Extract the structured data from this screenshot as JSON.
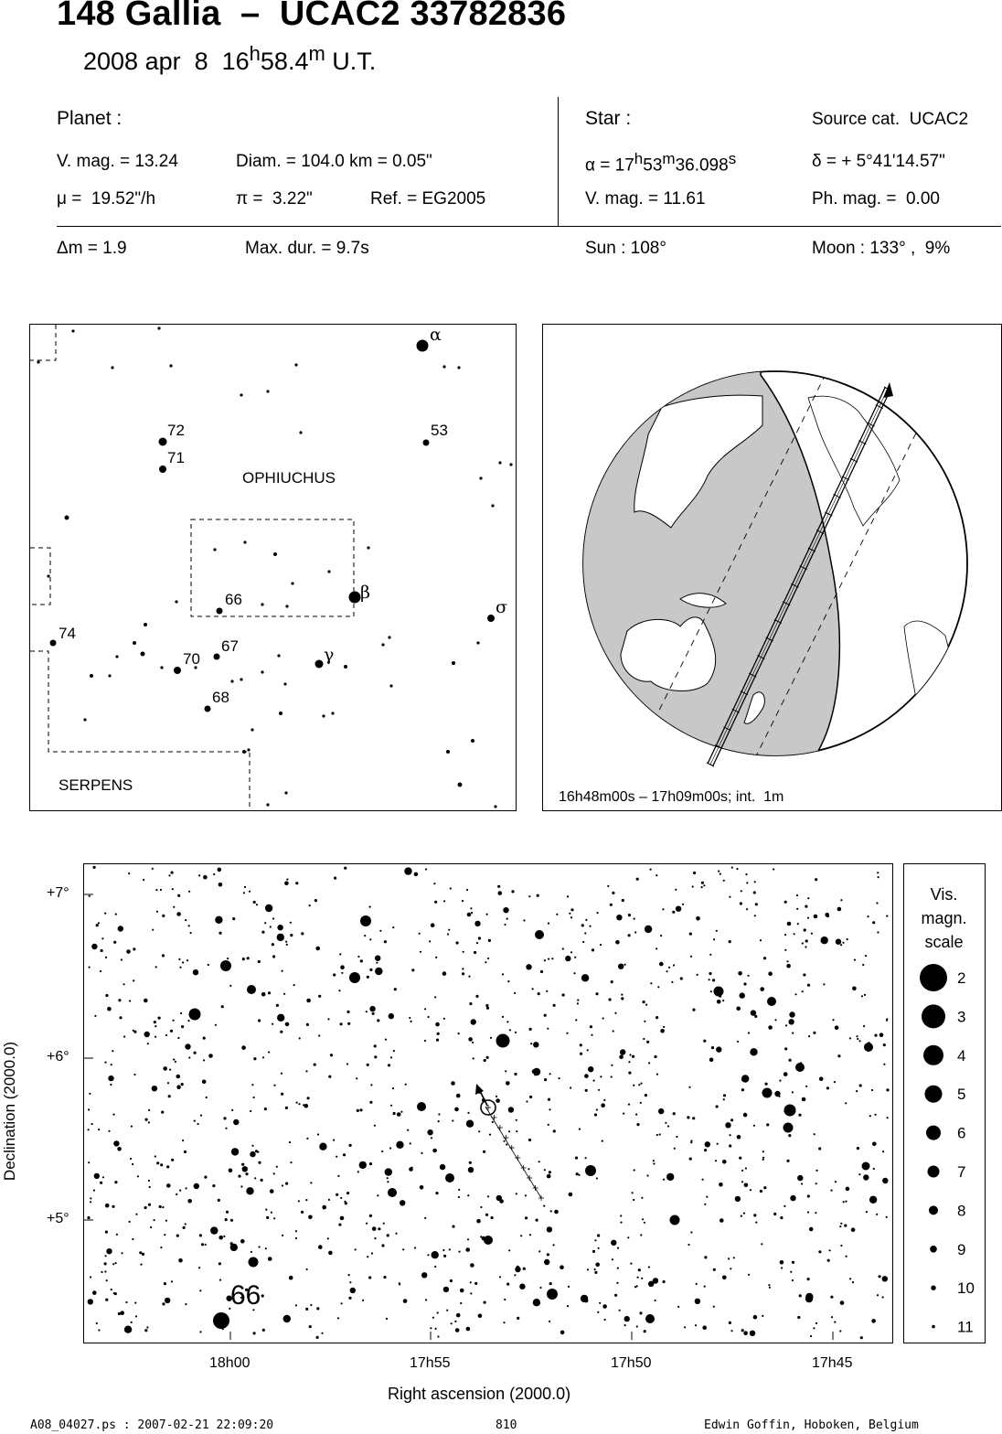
{
  "header": {
    "title": "148 Gallia  –  UCAC2 33782836",
    "date_prefix": "2008 apr  8  16",
    "date_h": "h",
    "date_mid": "58.4",
    "date_m": "m",
    "date_suffix": " U.T."
  },
  "planet": {
    "heading": "Planet :",
    "vmag": "V. mag. = 13.24",
    "diam": "Diam. = 104.0 km = 0.05\"",
    "mu": "μ =  19.52\"/h",
    "pi": "π =  3.22\"",
    "ref": "Ref. = EG2005",
    "dm": "Δm = 1.9",
    "maxdur": "Max. dur. = 9.7s"
  },
  "star": {
    "heading": "Star :",
    "source": "Source cat.  UCAC2",
    "alpha_prefix": "α = 17",
    "alpha_h": "h",
    "alpha_mid": "53",
    "alpha_m": "m",
    "alpha_val": "36.098",
    "alpha_s": "s",
    "delta": "δ = + 5°41'14.57\"",
    "vmag": "V. mag. = 11.61",
    "phmag": "Ph. mag. =  0.00",
    "sun": "Sun : 108°",
    "moon": "Moon : 133° ,  9%"
  },
  "constellation_map": {
    "labels": {
      "ophiuchus": "OPHIUCHUS",
      "serpens": "SERPENS",
      "alpha": "α",
      "beta": "β",
      "gamma": "γ",
      "sigma": "σ",
      "n53": "53",
      "n66": "66",
      "n67": "67",
      "n68": "68",
      "n70": "70",
      "n71": "71",
      "n72": "72",
      "n74": "74"
    }
  },
  "globe": {
    "caption": "16h48m00s – 17h09m00s; int.  1m"
  },
  "star_chart": {
    "y_ticks": [
      "+7°",
      "+6°",
      "+5°"
    ],
    "x_ticks": [
      "18h00",
      "17h55",
      "17h50",
      "17h45"
    ],
    "ylabel": "Declination (2000.0)",
    "xlabel": "Right ascension (2000.0)",
    "star_label": "66",
    "legend_title": [
      "Vis.",
      "magn.",
      "scale"
    ],
    "legend_mags": [
      "2",
      "3",
      "4",
      "5",
      "6",
      "7",
      "8",
      "9",
      "10",
      "11"
    ]
  },
  "footer": {
    "left": "A08_04027.ps : 2007-02-21 22:09:20",
    "center": "810",
    "right": "Edwin Goffin, Hoboken, Belgium"
  }
}
